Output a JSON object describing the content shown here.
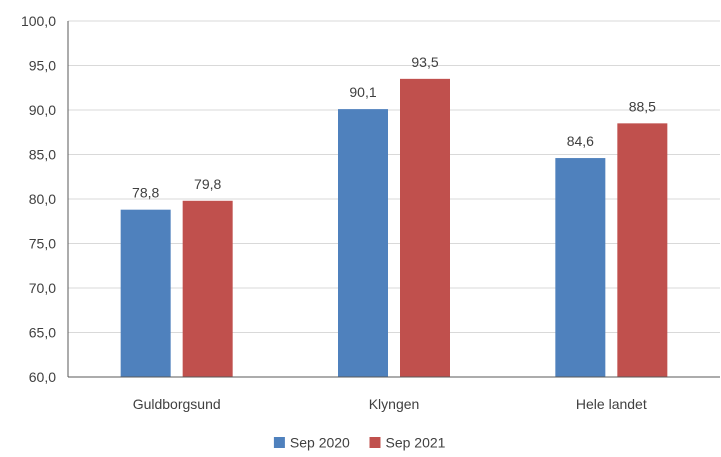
{
  "chart_data": {
    "type": "bar",
    "categories": [
      "Guldborgsund",
      "Klyngen",
      "Hele landet"
    ],
    "series": [
      {
        "name": "Sep 2020",
        "color": "#4f81bd",
        "values": [
          78.8,
          90.1,
          84.6
        ]
      },
      {
        "name": "Sep 2021",
        "color": "#c0504d",
        "values": [
          79.8,
          93.5,
          88.5
        ]
      }
    ],
    "ylim": [
      60,
      100
    ],
    "ytick_step": 5,
    "ytick_labels": [
      "60,0",
      "65,0",
      "70,0",
      "75,0",
      "80,0",
      "85,0",
      "90,0",
      "95,0",
      "100,0"
    ],
    "data_labels": [
      [
        "78,8",
        "90,1",
        "84,6"
      ],
      [
        "79,8",
        "93,5",
        "88,5"
      ]
    ],
    "grid": true,
    "legend_position": "bottom"
  }
}
